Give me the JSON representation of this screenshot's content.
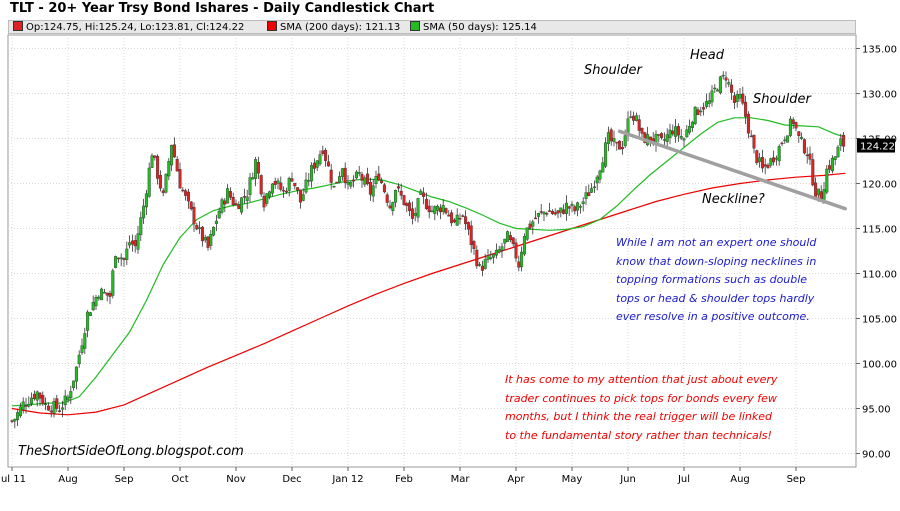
{
  "header": {
    "title": "TLT - 20+ Year Trsy Bond Ishares - Daily Candlestick Chart",
    "ohlc": "Op:124.75, Hi:125.24, Lo:123.81, Cl:124.22",
    "sma200_label": "SMA (200 days): 121.13",
    "sma50_label": "SMA (50 days): 125.14"
  },
  "colors": {
    "up": "#22bb22",
    "down": "#dd2222",
    "sma200": "#ee0000",
    "sma50": "#22bb22",
    "neckline": "#a0a0a0",
    "annotation_blue": "#1a1acc",
    "annotation_red": "#ee0000",
    "grid": "#d9d9d9",
    "last_price_box": "#000000"
  },
  "annotations": {
    "left_shoulder": "Shoulder",
    "head": "Head",
    "right_shoulder": "Shoulder",
    "neckline": "Neckline?",
    "blue_lines": [
      "While I am not an expert one should",
      "know that down-sloping necklines in",
      "topping formations such as double",
      "tops or head & shoulder tops hardly",
      "ever resolve in a positive outcome."
    ],
    "red_lines": [
      "It has come to my attention that just about every",
      "trader continues to pick tops for bonds every few",
      "months, but I think the real trigger will be linked",
      "to the fundamental story rather than technicals!"
    ],
    "watermark": "TheShortSideOfLong.blogspot.com"
  },
  "chart_data": {
    "type": "candlestick",
    "title": "TLT - 20+ Year Trsy Bond Ishares - Daily Candlestick Chart",
    "ylim": [
      88.5,
      136.5
    ],
    "y_ticks": [
      90,
      95,
      100,
      105,
      110,
      115,
      120,
      125,
      130,
      135
    ],
    "y_tick_labels": [
      "90.00",
      "95.00",
      "100.00",
      "105.00",
      "110.00",
      "115.00",
      "120.00",
      "125.00",
      "130.00",
      "135.00"
    ],
    "x_tick_labels": [
      "Jul 11",
      "Aug",
      "Sep",
      "Oct",
      "Nov",
      "Dec",
      "Jan 12",
      "Feb",
      "Mar",
      "Apr",
      "May",
      "Jun",
      "Jul",
      "Aug",
      "Sep"
    ],
    "x_tick_months": [
      0,
      1,
      2,
      3,
      4,
      5,
      6,
      7,
      8,
      9,
      10,
      11,
      12,
      13,
      14
    ],
    "x_range_months": [
      0,
      14.88
    ],
    "last_price": 124.22,
    "last_price_label": "124.22",
    "grid": true,
    "price_anchor_points": [
      [
        0.0,
        93.6
      ],
      [
        0.05,
        93.9
      ],
      [
        0.2,
        95.5
      ],
      [
        0.45,
        96.8
      ],
      [
        0.6,
        95.4
      ],
      [
        0.85,
        95.0
      ],
      [
        1.0,
        96.2
      ],
      [
        1.15,
        99.5
      ],
      [
        1.35,
        105.5
      ],
      [
        1.55,
        108.0
      ],
      [
        1.75,
        107.5
      ],
      [
        1.85,
        112.5
      ],
      [
        2.0,
        111.5
      ],
      [
        2.1,
        113.5
      ],
      [
        2.2,
        113.0
      ],
      [
        2.35,
        117.5
      ],
      [
        2.5,
        123.5
      ],
      [
        2.7,
        118.5
      ],
      [
        2.85,
        124.5
      ],
      [
        3.0,
        120.0
      ],
      [
        3.15,
        117.5
      ],
      [
        3.35,
        114.5
      ],
      [
        3.5,
        112.8
      ],
      [
        3.6,
        115.0
      ],
      [
        3.7,
        117.0
      ],
      [
        3.85,
        119.0
      ],
      [
        4.0,
        117.5
      ],
      [
        4.2,
        119.0
      ],
      [
        4.35,
        122.5
      ],
      [
        4.5,
        118.0
      ],
      [
        4.65,
        120.5
      ],
      [
        4.85,
        119.0
      ],
      [
        5.0,
        120.8
      ],
      [
        5.15,
        118.0
      ],
      [
        5.35,
        121.5
      ],
      [
        5.55,
        124.0
      ],
      [
        5.75,
        119.5
      ],
      [
        5.9,
        122.0
      ],
      [
        6.0,
        119.5
      ],
      [
        6.2,
        121.0
      ],
      [
        6.4,
        119.0
      ],
      [
        6.55,
        121.0
      ],
      [
        6.75,
        117.5
      ],
      [
        6.85,
        119.5
      ],
      [
        7.0,
        118.0
      ],
      [
        7.15,
        116.0
      ],
      [
        7.3,
        118.5
      ],
      [
        7.5,
        117.0
      ],
      [
        7.7,
        117.5
      ],
      [
        7.9,
        115.5
      ],
      [
        8.05,
        116.5
      ],
      [
        8.2,
        113.5
      ],
      [
        8.35,
        110.5
      ],
      [
        8.5,
        111.5
      ],
      [
        8.65,
        112.0
      ],
      [
        8.85,
        114.0
      ],
      [
        9.0,
        112.0
      ],
      [
        9.05,
        111.0
      ],
      [
        9.15,
        114.5
      ],
      [
        9.35,
        116.2
      ],
      [
        9.55,
        117.0
      ],
      [
        9.75,
        116.5
      ],
      [
        9.9,
        117.5
      ],
      [
        10.05,
        117.0
      ],
      [
        10.2,
        118.0
      ],
      [
        10.35,
        119.5
      ],
      [
        10.5,
        122.0
      ],
      [
        10.65,
        125.0
      ],
      [
        10.8,
        124.0
      ],
      [
        10.9,
        124.3
      ],
      [
        11.05,
        128.0
      ],
      [
        11.15,
        127.0
      ],
      [
        11.25,
        125.0
      ],
      [
        11.45,
        125.0
      ],
      [
        11.6,
        124.5
      ],
      [
        11.8,
        126.0
      ],
      [
        12.0,
        125.0
      ],
      [
        12.15,
        127.5
      ],
      [
        12.3,
        128.5
      ],
      [
        12.45,
        129.0
      ],
      [
        12.6,
        131.0
      ],
      [
        12.75,
        132.0
      ],
      [
        12.9,
        129.0
      ],
      [
        13.0,
        129.5
      ],
      [
        13.1,
        127.5
      ],
      [
        13.25,
        123.5
      ],
      [
        13.4,
        121.5
      ],
      [
        13.55,
        122.5
      ],
      [
        13.7,
        124.0
      ],
      [
        13.85,
        126.0
      ],
      [
        13.95,
        127.0
      ],
      [
        14.05,
        125.0
      ],
      [
        14.2,
        123.5
      ],
      [
        14.35,
        119.0
      ],
      [
        14.45,
        118.5
      ],
      [
        14.55,
        121.5
      ],
      [
        14.7,
        123.0
      ],
      [
        14.8,
        124.5
      ],
      [
        14.88,
        124.22
      ]
    ],
    "sma50_points": [
      [
        0.0,
        95.3
      ],
      [
        0.3,
        95.4
      ],
      [
        0.6,
        95.6
      ],
      [
        0.9,
        95.6
      ],
      [
        1.2,
        96.3
      ],
      [
        1.5,
        98.5
      ],
      [
        1.8,
        101.0
      ],
      [
        2.1,
        103.5
      ],
      [
        2.4,
        107.0
      ],
      [
        2.7,
        111.0
      ],
      [
        3.0,
        114.0
      ],
      [
        3.3,
        116.0
      ],
      [
        3.6,
        117.0
      ],
      [
        3.9,
        117.5
      ],
      [
        4.2,
        117.8
      ],
      [
        4.5,
        118.3
      ],
      [
        4.8,
        118.8
      ],
      [
        5.1,
        119.2
      ],
      [
        5.4,
        119.5
      ],
      [
        5.7,
        119.9
      ],
      [
        6.0,
        120.3
      ],
      [
        6.3,
        120.5
      ],
      [
        6.6,
        120.4
      ],
      [
        6.9,
        119.9
      ],
      [
        7.2,
        119.2
      ],
      [
        7.5,
        118.5
      ],
      [
        7.8,
        118.0
      ],
      [
        8.1,
        117.3
      ],
      [
        8.4,
        116.5
      ],
      [
        8.7,
        115.6
      ],
      [
        9.0,
        115.0
      ],
      [
        9.3,
        114.9
      ],
      [
        9.6,
        114.8
      ],
      [
        9.9,
        114.9
      ],
      [
        10.2,
        115.2
      ],
      [
        10.5,
        116.0
      ],
      [
        10.8,
        117.5
      ],
      [
        11.1,
        119.3
      ],
      [
        11.4,
        121.0
      ],
      [
        11.7,
        122.5
      ],
      [
        12.0,
        124.0
      ],
      [
        12.3,
        125.5
      ],
      [
        12.6,
        126.8
      ],
      [
        12.9,
        127.3
      ],
      [
        13.2,
        127.3
      ],
      [
        13.5,
        127.0
      ],
      [
        13.8,
        126.5
      ],
      [
        14.1,
        126.4
      ],
      [
        14.4,
        126.3
      ],
      [
        14.7,
        125.5
      ],
      [
        14.88,
        125.14
      ]
    ],
    "sma200_points": [
      [
        0.0,
        95.0
      ],
      [
        0.5,
        94.5
      ],
      [
        1.0,
        94.3
      ],
      [
        1.5,
        94.6
      ],
      [
        2.0,
        95.4
      ],
      [
        2.5,
        96.8
      ],
      [
        3.0,
        98.2
      ],
      [
        3.5,
        99.6
      ],
      [
        4.0,
        100.9
      ],
      [
        4.5,
        102.2
      ],
      [
        5.0,
        103.6
      ],
      [
        5.5,
        105.0
      ],
      [
        6.0,
        106.4
      ],
      [
        6.5,
        107.7
      ],
      [
        7.0,
        108.9
      ],
      [
        7.5,
        110.0
      ],
      [
        8.0,
        111.0
      ],
      [
        8.5,
        112.0
      ],
      [
        9.0,
        113.0
      ],
      [
        9.5,
        114.0
      ],
      [
        10.0,
        115.0
      ],
      [
        10.5,
        116.0
      ],
      [
        11.0,
        117.0
      ],
      [
        11.5,
        118.0
      ],
      [
        12.0,
        118.8
      ],
      [
        12.5,
        119.5
      ],
      [
        13.0,
        120.0
      ],
      [
        13.5,
        120.4
      ],
      [
        14.0,
        120.7
      ],
      [
        14.5,
        120.9
      ],
      [
        14.88,
        121.13
      ]
    ],
    "neckline_points": [
      [
        10.85,
        125.8
      ],
      [
        14.88,
        117.2
      ]
    ]
  }
}
